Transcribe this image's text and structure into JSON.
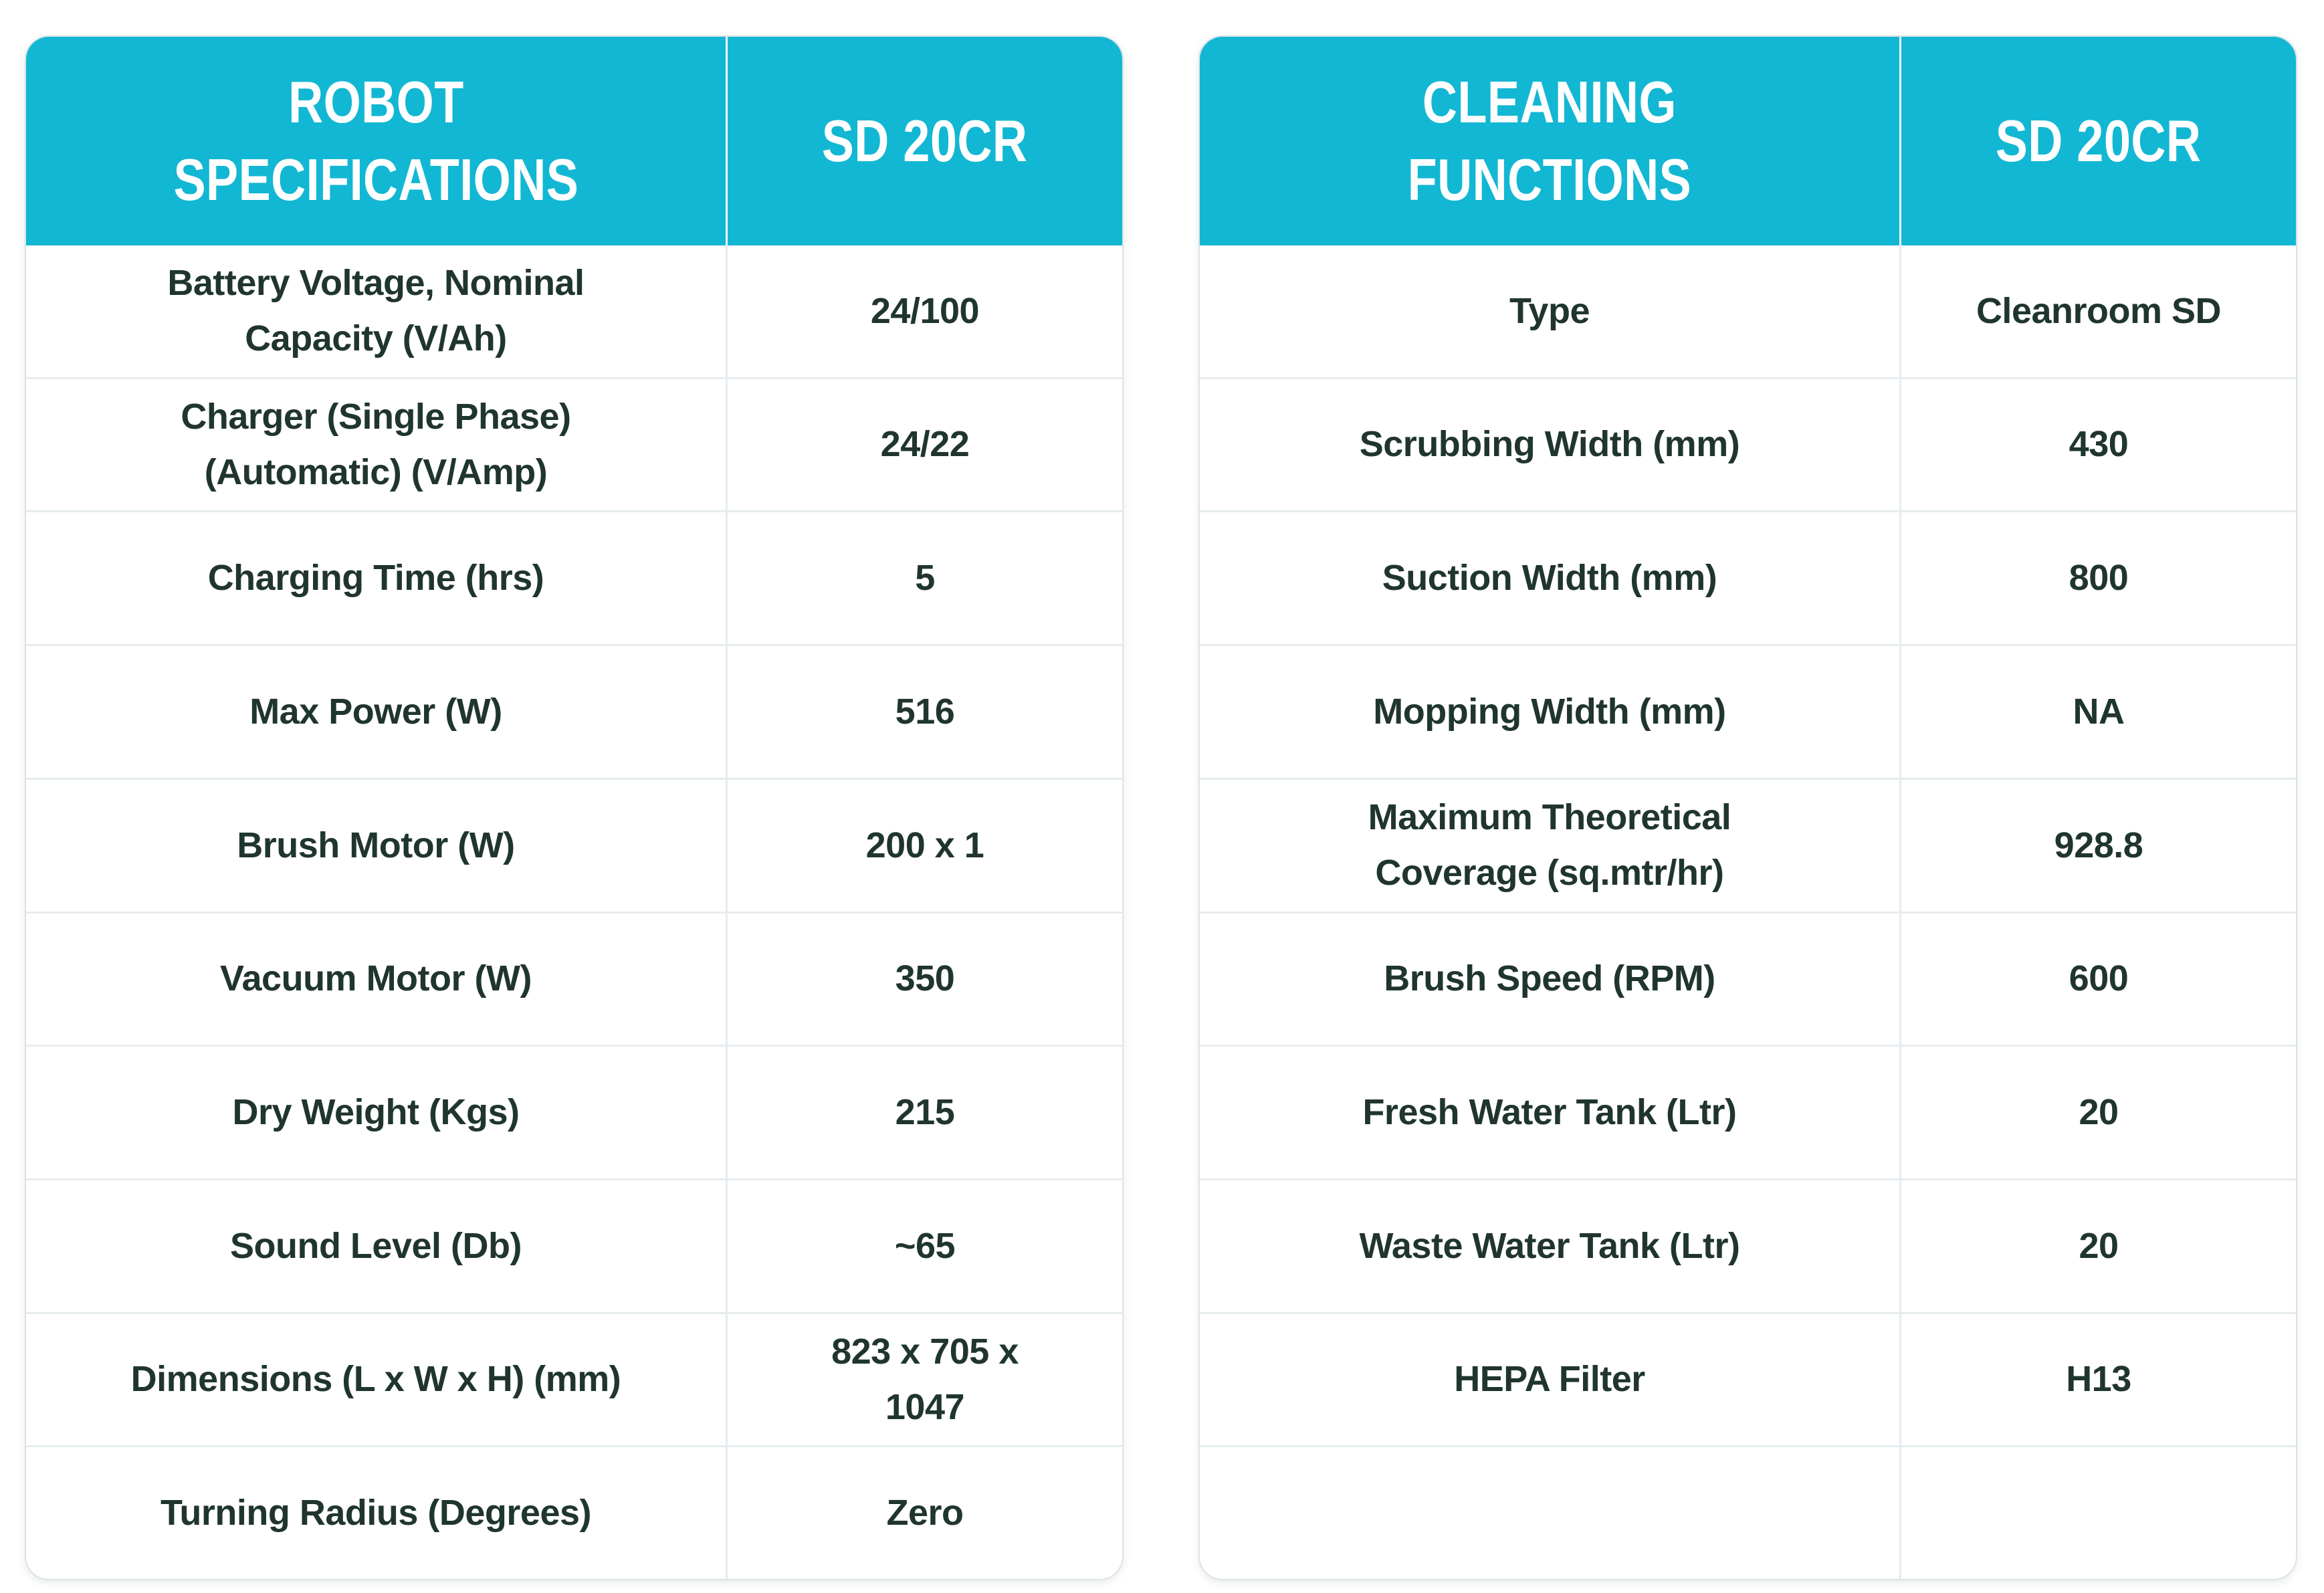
{
  "colors": {
    "header_bg": "#12b7d3",
    "header_text": "#ffffff",
    "row_text": "#203530",
    "row_divider": "#e6ecef",
    "table_border": "#dce3e8",
    "page_bg": "#ffffff"
  },
  "tables": [
    {
      "header": {
        "title": "ROBOT\nSPECIFICATIONS",
        "model": "SD 20CR"
      },
      "rows": [
        {
          "label": "Battery Voltage, Nominal\nCapacity (V/Ah)",
          "value": "24/100"
        },
        {
          "label": "Charger (Single Phase)\n(Automatic) (V/Amp)",
          "value": "24/22"
        },
        {
          "label": "Charging Time (hrs)",
          "value": "5"
        },
        {
          "label": "Max Power (W)",
          "value": "516"
        },
        {
          "label": "Brush Motor (W)",
          "value": "200 x 1"
        },
        {
          "label": "Vacuum Motor (W)",
          "value": "350"
        },
        {
          "label": "Dry Weight (Kgs)",
          "value": "215"
        },
        {
          "label": "Sound Level (Db)",
          "value": "~65"
        },
        {
          "label": "Dimensions (L x W x H) (mm)",
          "value": "823 x 705 x\n1047"
        },
        {
          "label": "Turning Radius (Degrees)",
          "value": "Zero"
        }
      ]
    },
    {
      "header": {
        "title": "CLEANING\nFUNCTIONS",
        "model": "SD 20CR"
      },
      "rows": [
        {
          "label": "Type",
          "value": "Cleanroom SD"
        },
        {
          "label": "Scrubbing Width (mm)",
          "value": "430"
        },
        {
          "label": "Suction Width (mm)",
          "value": "800"
        },
        {
          "label": "Mopping Width (mm)",
          "value": "NA"
        },
        {
          "label": "Maximum Theoretical\nCoverage (sq.mtr/hr)",
          "value": "928.8"
        },
        {
          "label": "Brush Speed (RPM)",
          "value": "600"
        },
        {
          "label": "Fresh Water Tank (Ltr)",
          "value": "20"
        },
        {
          "label": "Waste Water Tank (Ltr)",
          "value": "20"
        },
        {
          "label": "HEPA Filter",
          "value": "H13"
        },
        {
          "label": "",
          "value": ""
        }
      ]
    }
  ]
}
